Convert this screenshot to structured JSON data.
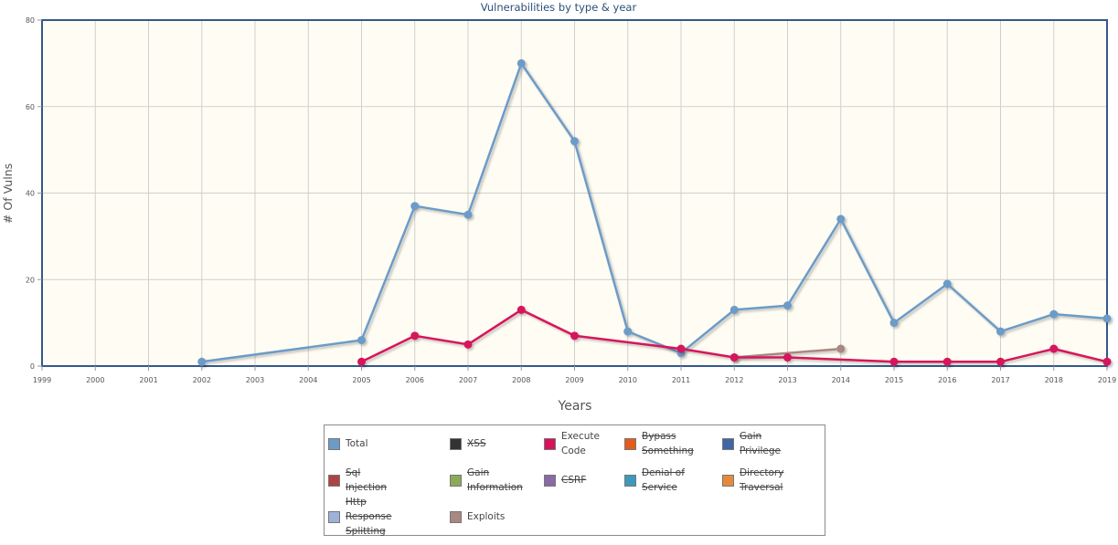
{
  "chart_data": {
    "type": "line",
    "title": "Vulnerabilities by type & year",
    "xlabel": "Years",
    "ylabel": "# Of Vulns",
    "x": [
      1999,
      2000,
      2001,
      2002,
      2003,
      2004,
      2005,
      2006,
      2007,
      2008,
      2009,
      2010,
      2011,
      2012,
      2013,
      2014,
      2015,
      2016,
      2017,
      2018,
      2019
    ],
    "ylim": [
      0,
      80
    ],
    "yticks": [
      0,
      20,
      40,
      60,
      80
    ],
    "grid": true,
    "series": [
      {
        "name": "Total",
        "color": "#6c9bc8",
        "points": [
          [
            2002,
            1
          ],
          [
            2005,
            6
          ],
          [
            2006,
            37
          ],
          [
            2007,
            35
          ],
          [
            2008,
            70
          ],
          [
            2009,
            52
          ],
          [
            2010,
            8
          ],
          [
            2011,
            3
          ],
          [
            2012,
            13
          ],
          [
            2013,
            14
          ],
          [
            2014,
            34
          ],
          [
            2015,
            10
          ],
          [
            2016,
            19
          ],
          [
            2017,
            8
          ],
          [
            2018,
            12
          ],
          [
            2019,
            11
          ]
        ]
      },
      {
        "name": "Exploits",
        "color": "#a98783",
        "points": [
          [
            2012,
            2
          ],
          [
            2014,
            4
          ]
        ]
      },
      {
        "name": "Execute Code",
        "color": "#d6125b",
        "points": [
          [
            2005,
            1
          ],
          [
            2006,
            7
          ],
          [
            2007,
            5
          ],
          [
            2008,
            13
          ],
          [
            2009,
            7
          ],
          [
            2011,
            4
          ],
          [
            2012,
            2
          ],
          [
            2013,
            2
          ],
          [
            2015,
            1
          ],
          [
            2016,
            1
          ],
          [
            2017,
            1
          ],
          [
            2018,
            4
          ],
          [
            2019,
            1
          ]
        ]
      }
    ]
  },
  "legend": {
    "items": [
      {
        "label": "Total",
        "color": "#6c9bc8",
        "active": true
      },
      {
        "label": "XSS",
        "color": "#333333",
        "active": false
      },
      {
        "label": "Execute Code",
        "color": "#d6125b",
        "active": true
      },
      {
        "label": "Bypass Something",
        "color": "#e35c1c",
        "active": false
      },
      {
        "label": "Gain Privilege",
        "color": "#3f67a5",
        "active": false
      },
      {
        "label": "Sql Injection",
        "color": "#ab4544",
        "active": false
      },
      {
        "label": "Gain Information",
        "color": "#8aab58",
        "active": false
      },
      {
        "label": "CSRF",
        "color": "#8a6aa6",
        "active": false
      },
      {
        "label": "Denial of Service",
        "color": "#3d9aba",
        "active": false
      },
      {
        "label": "Directory Traversal",
        "color": "#e6893d",
        "active": false
      },
      {
        "label": "Http Response Splitting",
        "color": "#9eb2d8",
        "active": false
      },
      {
        "label": "Exploits",
        "color": "#a98783",
        "active": true
      }
    ]
  }
}
